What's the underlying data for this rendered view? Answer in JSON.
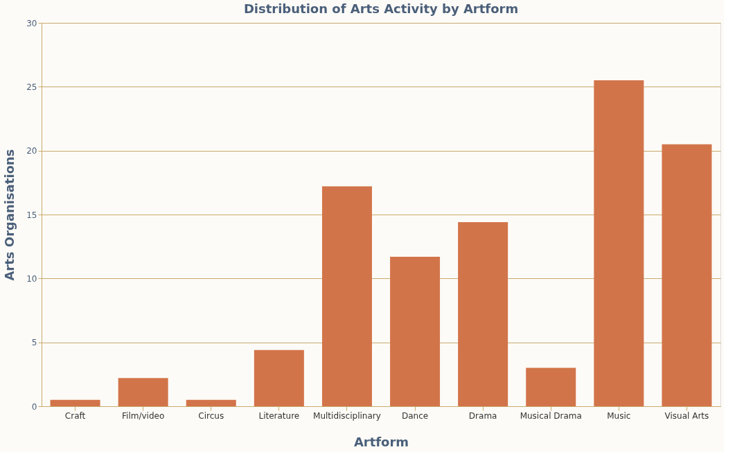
{
  "chart_data": {
    "type": "bar",
    "title": "Distribution of Arts Activity by Artform",
    "xlabel": "Artform",
    "ylabel": "Arts Organisations",
    "categories": [
      "Craft",
      "Film/video",
      "Circus",
      "Literature",
      "Multidisciplinary",
      "Dance",
      "Drama",
      "Musical Drama",
      "Music",
      "Visual Arts"
    ],
    "values": [
      0.5,
      2.2,
      0.5,
      4.4,
      17.2,
      11.7,
      14.4,
      3.0,
      25.5,
      20.5
    ],
    "color": "#d2744a",
    "ylim": [
      0,
      30
    ],
    "yticks": [
      0,
      5,
      10,
      15,
      20,
      25,
      30
    ],
    "grid": "y"
  }
}
